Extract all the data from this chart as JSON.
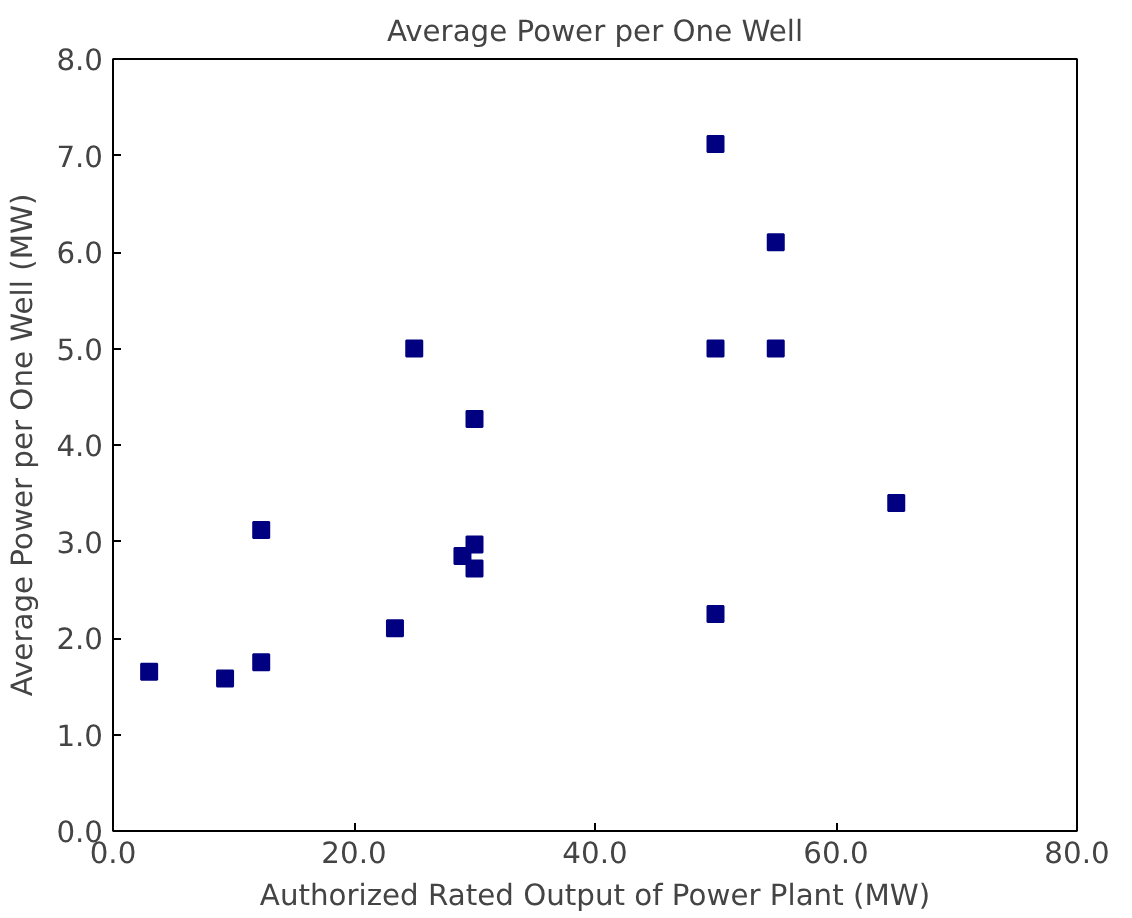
{
  "chart_data": {
    "type": "scatter",
    "title": "Average Power per One Well",
    "xlabel": "Authorized Rated Output of Power Plant (MW)",
    "ylabel": "Average Power per One Well (MW)",
    "x": [
      3,
      9.3,
      12.3,
      12.3,
      23.4,
      25,
      29,
      30,
      30,
      30,
      50,
      50,
      50,
      55,
      55,
      65
    ],
    "series": [
      {
        "color": "#000080",
        "values": [
          1.65,
          1.58,
          1.75,
          3.12,
          2.1,
          5.0,
          2.85,
          2.97,
          2.72,
          4.27,
          7.12,
          5.0,
          2.25,
          6.1,
          5.0,
          3.4
        ]
      }
    ],
    "xlim": [
      0,
      80
    ],
    "ylim": [
      0,
      8
    ],
    "xticks": [
      {
        "value": 0,
        "label": "0.0"
      },
      {
        "value": 20,
        "label": "20.0"
      },
      {
        "value": 40,
        "label": "40.0"
      },
      {
        "value": 60,
        "label": "60.0"
      },
      {
        "value": 80,
        "label": "80.0"
      }
    ],
    "yticks": [
      {
        "value": 0,
        "label": "0.0"
      },
      {
        "value": 1,
        "label": "1.0"
      },
      {
        "value": 2,
        "label": "2.0"
      },
      {
        "value": 3,
        "label": "3.0"
      },
      {
        "value": 4,
        "label": "4.0"
      },
      {
        "value": 5,
        "label": "5.0"
      },
      {
        "value": 6,
        "label": "6.0"
      },
      {
        "value": 7,
        "label": "7.0"
      },
      {
        "value": 8,
        "label": "8.0"
      }
    ],
    "grid": false,
    "marker": "square"
  }
}
